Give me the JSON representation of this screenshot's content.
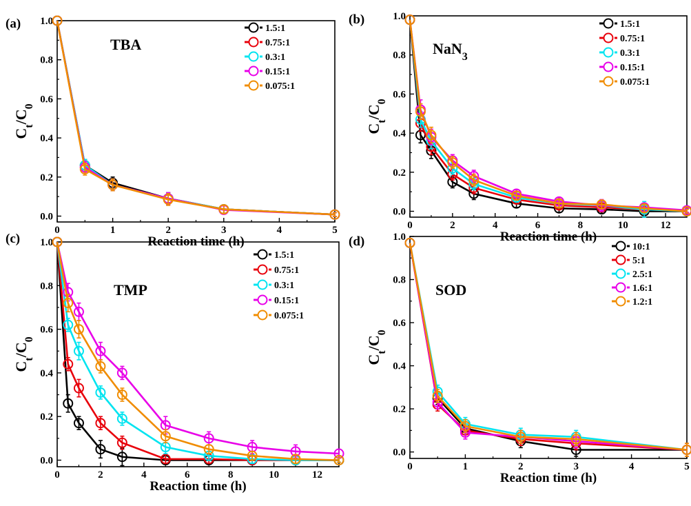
{
  "chart_data": [
    {
      "type": "line",
      "panel_label": "(a)",
      "title": "TBA",
      "xlabel": "Reaction time (h)",
      "ylabel": "C_t/C_0",
      "xlim": [
        0,
        5
      ],
      "ylim": [
        -0.03,
        1.0
      ],
      "xticks": [
        0,
        1,
        2,
        3,
        4,
        5
      ],
      "yticks": [
        0.0,
        0.2,
        0.4,
        0.6,
        0.8,
        1.0
      ],
      "x": [
        0,
        0.5,
        1,
        2,
        3,
        5
      ],
      "series": [
        {
          "name": "1.5:1",
          "color": "#000000",
          "values": [
            1.0,
            0.26,
            0.17,
            0.09,
            0.035,
            0.008
          ],
          "err": [
            0,
            0.03,
            0.03,
            0.03,
            0.02,
            0.01
          ]
        },
        {
          "name": "0.75:1",
          "color": "#e8000b",
          "values": [
            1.0,
            0.25,
            0.16,
            0.09,
            0.035,
            0.008
          ],
          "err": [
            0,
            0.03,
            0.03,
            0.03,
            0.02,
            0.01
          ]
        },
        {
          "name": "0.3:1",
          "color": "#00e4f0",
          "values": [
            1.0,
            0.26,
            0.16,
            0.09,
            0.035,
            0.008
          ],
          "err": [
            0,
            0.03,
            0.03,
            0.03,
            0.02,
            0.01
          ]
        },
        {
          "name": "0.15:1",
          "color": "#e800e8",
          "values": [
            1.0,
            0.25,
            0.16,
            0.09,
            0.032,
            0.008
          ],
          "err": [
            0,
            0.03,
            0.03,
            0.03,
            0.02,
            0.01
          ]
        },
        {
          "name": "0.075:1",
          "color": "#f08c00",
          "values": [
            1.0,
            0.24,
            0.16,
            0.085,
            0.035,
            0.008
          ],
          "err": [
            0,
            0.03,
            0.03,
            0.03,
            0.02,
            0.01
          ]
        }
      ]
    },
    {
      "type": "line",
      "panel_label": "(b)",
      "title": "NaN3",
      "xlabel": "Reaction time (h)",
      "ylabel": "C_t/C_0",
      "xlim": [
        0,
        13
      ],
      "ylim": [
        -0.03,
        1.0
      ],
      "xticks": [
        0,
        2,
        4,
        6,
        8,
        10,
        12
      ],
      "yticks": [
        0.0,
        0.2,
        0.4,
        0.6,
        0.8,
        1.0
      ],
      "x": [
        0,
        0.5,
        1,
        2,
        3,
        5,
        7,
        9,
        11,
        13
      ],
      "series": [
        {
          "name": "1.5:1",
          "color": "#000000",
          "values": [
            0.98,
            0.39,
            0.31,
            0.15,
            0.09,
            0.04,
            0.015,
            0.01,
            0.0,
            0.0
          ],
          "err": [
            0,
            0.04,
            0.04,
            0.03,
            0.03,
            0.02,
            0.02,
            0.02,
            0.02,
            0.01
          ]
        },
        {
          "name": "0.75:1",
          "color": "#e8000b",
          "values": [
            0.98,
            0.45,
            0.33,
            0.19,
            0.12,
            0.06,
            0.03,
            0.02,
            0.01,
            0.0
          ],
          "err": [
            0,
            0.04,
            0.04,
            0.03,
            0.03,
            0.02,
            0.02,
            0.02,
            0.02,
            0.01
          ]
        },
        {
          "name": "0.3:1",
          "color": "#00e4f0",
          "values": [
            0.98,
            0.47,
            0.36,
            0.22,
            0.14,
            0.07,
            0.04,
            0.03,
            0.01,
            0.0
          ],
          "err": [
            0,
            0.04,
            0.04,
            0.03,
            0.03,
            0.02,
            0.02,
            0.02,
            0.04,
            0.01
          ]
        },
        {
          "name": "0.15:1",
          "color": "#e800e8",
          "values": [
            0.98,
            0.52,
            0.38,
            0.26,
            0.18,
            0.09,
            0.05,
            0.03,
            0.02,
            0.005
          ],
          "err": [
            0,
            0.05,
            0.04,
            0.03,
            0.03,
            0.02,
            0.02,
            0.03,
            0.02,
            0.01
          ]
        },
        {
          "name": "0.075:1",
          "color": "#f08c00",
          "values": [
            0.98,
            0.51,
            0.39,
            0.25,
            0.16,
            0.08,
            0.04,
            0.035,
            0.015,
            0.0
          ],
          "err": [
            0,
            0.04,
            0.04,
            0.03,
            0.03,
            0.02,
            0.02,
            0.02,
            0.02,
            0.01
          ]
        }
      ]
    },
    {
      "type": "line",
      "panel_label": "(c)",
      "title": "TMP",
      "xlabel": "Reaction time (h)",
      "ylabel": "C_t/C_0",
      "xlim": [
        0,
        13
      ],
      "ylim": [
        -0.03,
        1.0
      ],
      "xticks": [
        0,
        2,
        4,
        6,
        8,
        10,
        12
      ],
      "yticks": [
        0.0,
        0.2,
        0.4,
        0.6,
        0.8,
        1.0
      ],
      "x": [
        0,
        0.5,
        1,
        2,
        3,
        5,
        7,
        9,
        11,
        13
      ],
      "series": [
        {
          "name": "1.5:1",
          "color": "#000000",
          "values": [
            1.0,
            0.26,
            0.17,
            0.05,
            0.015,
            0.0,
            0.0,
            0.0,
            0.0,
            0.0
          ],
          "err": [
            0,
            0.04,
            0.03,
            0.04,
            0.04,
            0.02,
            0.02,
            0.02,
            0.02,
            0.01
          ]
        },
        {
          "name": "0.75:1",
          "color": "#e8000b",
          "values": [
            1.0,
            0.44,
            0.33,
            0.17,
            0.08,
            0.005,
            0.005,
            0.0,
            0.0,
            0.0
          ],
          "err": [
            0,
            0.03,
            0.04,
            0.03,
            0.03,
            0.02,
            0.02,
            0.02,
            0.02,
            0.01
          ]
        },
        {
          "name": "0.3:1",
          "color": "#00e4f0",
          "values": [
            1.0,
            0.62,
            0.5,
            0.31,
            0.19,
            0.06,
            0.02,
            0.005,
            0.0,
            0.0
          ],
          "err": [
            0,
            0.03,
            0.04,
            0.03,
            0.03,
            0.03,
            0.02,
            0.02,
            0.02,
            0.01
          ]
        },
        {
          "name": "0.15:1",
          "color": "#e800e8",
          "values": [
            1.0,
            0.77,
            0.68,
            0.5,
            0.4,
            0.16,
            0.1,
            0.06,
            0.04,
            0.03
          ],
          "err": [
            0,
            0.04,
            0.04,
            0.04,
            0.03,
            0.04,
            0.03,
            0.03,
            0.03,
            0.02
          ]
        },
        {
          "name": "0.075:1",
          "color": "#f08c00",
          "values": [
            1.0,
            0.72,
            0.6,
            0.43,
            0.3,
            0.11,
            0.05,
            0.02,
            0.005,
            0.0
          ],
          "err": [
            0,
            0.04,
            0.04,
            0.03,
            0.03,
            0.03,
            0.02,
            0.02,
            0.02,
            0.01
          ]
        }
      ]
    },
    {
      "type": "line",
      "panel_label": "(d)",
      "title": "SOD",
      "xlabel": "Reaction time (h)",
      "ylabel": "C_t/C_0",
      "xlim": [
        0,
        5
      ],
      "ylim": [
        -0.03,
        1.0
      ],
      "xticks": [
        0,
        1,
        2,
        3,
        4,
        5
      ],
      "yticks": [
        0.0,
        0.2,
        0.4,
        0.6,
        0.8,
        1.0
      ],
      "x": [
        0,
        0.5,
        1,
        2,
        3,
        5
      ],
      "series": [
        {
          "name": "10:1",
          "color": "#000000",
          "values": [
            0.97,
            0.25,
            0.11,
            0.05,
            0.01,
            0.01
          ],
          "err": [
            0,
            0.03,
            0.03,
            0.03,
            0.03,
            0.02
          ]
        },
        {
          "name": "5:1",
          "color": "#e8000b",
          "values": [
            0.97,
            0.22,
            0.1,
            0.06,
            0.04,
            0.01
          ],
          "err": [
            0,
            0.03,
            0.03,
            0.03,
            0.03,
            0.03
          ]
        },
        {
          "name": "2.5:1",
          "color": "#00e4f0",
          "values": [
            0.97,
            0.28,
            0.13,
            0.08,
            0.07,
            0.01
          ],
          "err": [
            0,
            0.03,
            0.03,
            0.03,
            0.03,
            0.02
          ]
        },
        {
          "name": "1.6:1",
          "color": "#e800e8",
          "values": [
            0.97,
            0.23,
            0.09,
            0.07,
            0.05,
            0.01
          ],
          "err": [
            0,
            0.03,
            0.03,
            0.03,
            0.03,
            0.02
          ]
        },
        {
          "name": "1.2:1",
          "color": "#f08c00",
          "values": [
            0.97,
            0.26,
            0.12,
            0.07,
            0.06,
            0.01
          ],
          "err": [
            0,
            0.03,
            0.03,
            0.03,
            0.03,
            0.03
          ]
        }
      ]
    }
  ]
}
